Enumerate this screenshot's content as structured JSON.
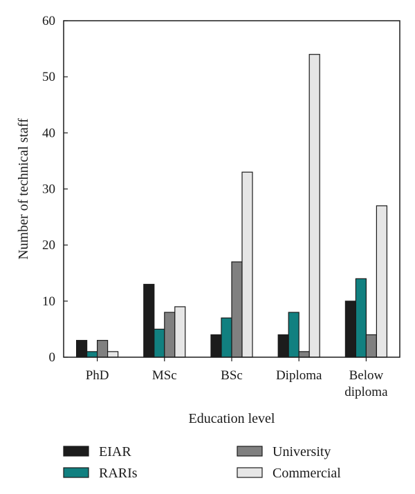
{
  "chart_data": {
    "type": "bar",
    "categories": [
      [
        "PhD"
      ],
      [
        "MSc"
      ],
      [
        "BSc"
      ],
      [
        "Diploma"
      ],
      [
        "Below",
        "diploma"
      ]
    ],
    "series": [
      {
        "name": "EIAR",
        "color": "#1c1c1c",
        "values": [
          3,
          13,
          4,
          4,
          10
        ]
      },
      {
        "name": "RARIs",
        "color": "#118080",
        "values": [
          1,
          5,
          7,
          8,
          14
        ]
      },
      {
        "name": "University",
        "color": "#808080",
        "values": [
          3,
          8,
          17,
          1,
          4
        ]
      },
      {
        "name": "Commercial",
        "color": "#e6e6e6",
        "values": [
          1,
          9,
          33,
          54,
          27
        ]
      }
    ],
    "title": "",
    "xlabel": "Education level",
    "ylabel": "Number of technical staff",
    "ylim": [
      0,
      60
    ],
    "yticks": [
      0,
      10,
      20,
      30,
      40,
      50,
      60
    ],
    "grid": false,
    "legend_position": "bottom"
  }
}
